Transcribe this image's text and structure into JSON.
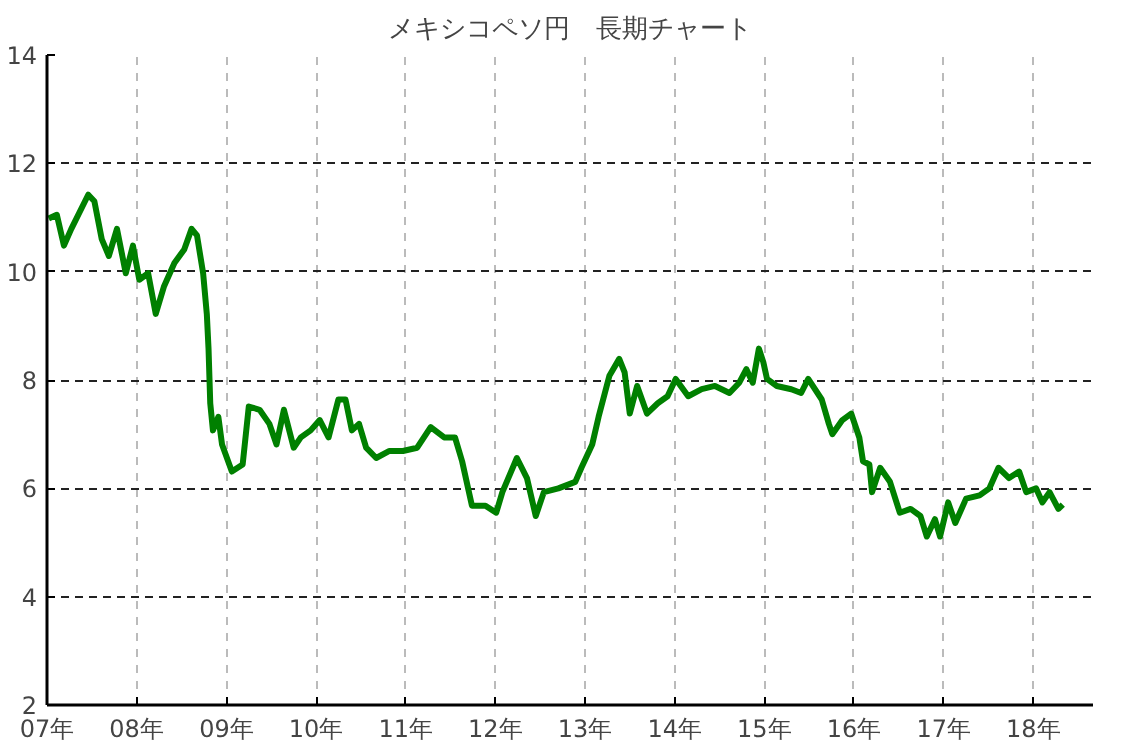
{
  "chart_data": {
    "type": "line",
    "title": "メキシコペソ円　長期チャート",
    "x": [
      "2007-01-08",
      "2007-02-10",
      "2007-03-11",
      "2007-04-10",
      "2007-06-18",
      "2007-07-13",
      "2007-08-12",
      "2007-09-10",
      "2007-10-13",
      "2007-11-18",
      "2007-12-17",
      "2008-01-12",
      "2008-02-17",
      "2008-03-19",
      "2008-04-21",
      "2008-06-03",
      "2008-07-13",
      "2008-08-12",
      "2008-09-03",
      "2008-09-28",
      "2008-10-13",
      "2008-10-20",
      "2008-10-27",
      "2008-11-07",
      "2008-11-29",
      "2008-12-14",
      "2009-01-23",
      "2009-03-08",
      "2009-04-02",
      "2009-05-16",
      "2009-06-25",
      "2009-07-24",
      "2009-08-23",
      "2009-10-02",
      "2009-10-31",
      "2009-12-10",
      "2010-01-16",
      "2010-02-21",
      "2010-04-02",
      "2010-05-01",
      "2010-05-27",
      "2010-06-25",
      "2010-07-24",
      "2010-09-03",
      "2010-10-27",
      "2010-12-21",
      "2011-02-17",
      "2011-04-13",
      "2011-06-07",
      "2011-07-21",
      "2011-08-19",
      "2011-09-28",
      "2011-11-22",
      "2012-01-05",
      "2012-01-30",
      "2012-03-29",
      "2012-05-09",
      "2012-06-14",
      "2012-07-17",
      "2012-09-14",
      "2012-11-22",
      "2012-12-17",
      "2013-01-30",
      "2013-02-25",
      "2013-04-10",
      "2013-05-20",
      "2013-06-11",
      "2013-07-02",
      "2013-08-01",
      "2013-09-10",
      "2013-10-24",
      "2013-12-03",
      "2014-01-05",
      "2014-02-25",
      "2014-04-21",
      "2014-06-14",
      "2014-08-12",
      "2014-09-21",
      "2014-10-20",
      "2014-11-15",
      "2014-12-10",
      "2014-12-28",
      "2015-01-12",
      "2015-02-21",
      "2015-04-21",
      "2015-05-31",
      "2015-06-29",
      "2015-08-23",
      "2015-09-21",
      "2015-10-05",
      "2015-11-15",
      "2015-12-21",
      "2016-01-23",
      "2016-02-07",
      "2016-03-04",
      "2016-03-15",
      "2016-04-17",
      "2016-05-27",
      "2016-07-06",
      "2016-08-19",
      "2016-09-28",
      "2016-10-24",
      "2016-11-26",
      "2016-12-17",
      "2017-01-19",
      "2017-02-17",
      "2017-04-02",
      "2017-05-27",
      "2017-07-06",
      "2017-08-12",
      "2017-09-24",
      "2017-11-04",
      "2017-12-03",
      "2018-01-12",
      "2018-02-07",
      "2018-03-08",
      "2018-04-13",
      "2018-05-01"
    ],
    "series": [
      {
        "color": "#008000",
        "values": [
          10.98,
          11.05,
          10.48,
          10.79,
          11.42,
          11.3,
          10.6,
          10.29,
          10.79,
          9.97,
          10.48,
          9.85,
          9.97,
          9.22,
          9.72,
          10.16,
          10.41,
          10.79,
          10.67,
          9.97,
          9.22,
          8.58,
          7.57,
          7.07,
          7.32,
          6.81,
          6.31,
          6.44,
          7.51,
          7.45,
          7.19,
          6.81,
          7.45,
          6.75,
          6.94,
          7.07,
          7.26,
          6.94,
          7.64,
          7.64,
          7.07,
          7.19,
          6.75,
          6.56,
          6.69,
          6.69,
          6.75,
          7.13,
          6.94,
          6.94,
          6.5,
          5.68,
          5.68,
          5.55,
          5.93,
          6.56,
          6.19,
          5.49,
          5.93,
          6.0,
          6.12,
          6.38,
          6.81,
          7.32,
          8.08,
          8.39,
          8.14,
          7.38,
          7.89,
          7.38,
          7.57,
          7.7,
          8.02,
          7.7,
          7.83,
          7.89,
          7.76,
          7.95,
          8.2,
          7.95,
          8.58,
          8.33,
          8.02,
          7.89,
          7.83,
          7.76,
          8.02,
          7.64,
          7.19,
          7.0,
          7.26,
          7.38,
          6.94,
          6.5,
          6.44,
          5.93,
          6.38,
          6.12,
          5.55,
          5.62,
          5.49,
          5.11,
          5.43,
          5.11,
          5.74,
          5.36,
          5.81,
          5.87,
          6.0,
          6.38,
          6.19,
          6.31,
          5.93,
          6.0,
          5.74,
          5.93,
          5.62,
          5.7
        ]
      }
    ],
    "xlim": [
      "2007-01-01",
      "2018-09-01"
    ],
    "xticks": [
      {
        "value": "2007",
        "label": "07年"
      },
      {
        "value": "2008",
        "label": "08年"
      },
      {
        "value": "2009",
        "label": "09年"
      },
      {
        "value": "2010",
        "label": "10年"
      },
      {
        "value": "2011",
        "label": "11年"
      },
      {
        "value": "2012",
        "label": "12年"
      },
      {
        "value": "2013",
        "label": "13年"
      },
      {
        "value": "2014",
        "label": "14年"
      },
      {
        "value": "2015",
        "label": "15年"
      },
      {
        "value": "2016",
        "label": "16年"
      },
      {
        "value": "2017",
        "label": "17年"
      },
      {
        "value": "2018",
        "label": "18年"
      }
    ],
    "ylim": [
      2,
      14
    ],
    "yticks": [
      2,
      4,
      6,
      8,
      10,
      12,
      14
    ],
    "grid": true,
    "line_style": "solid"
  }
}
